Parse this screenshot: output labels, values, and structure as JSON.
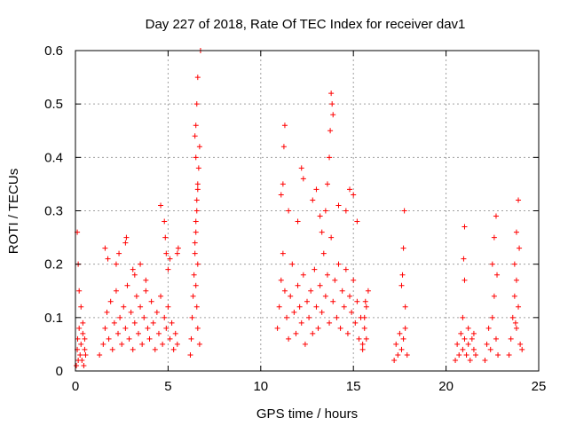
{
  "chart_data": {
    "type": "scatter",
    "title": "Day 227 of 2018, Rate Of TEC Index for receiver dav1",
    "xlabel": "GPS time / hours",
    "ylabel": "ROTI / TECUs",
    "xlim": [
      0,
      25
    ],
    "ylim": [
      0,
      0.6
    ],
    "xticks": [
      "0",
      "5",
      "10",
      "15",
      "20",
      "25"
    ],
    "yticks": [
      "0",
      "0.1",
      "0.2",
      "0.3",
      "0.4",
      "0.5",
      "0.6"
    ],
    "grid": true,
    "marker": "plus",
    "color": "#ff0000",
    "series": [
      {
        "x": [
          0.05,
          0.1,
          0.12,
          0.15,
          0.2,
          0.25,
          0.3,
          0.35,
          0.4,
          0.45,
          0.5,
          0.1,
          0.15,
          0.2,
          0.3,
          0.4,
          0.5,
          0.55,
          1.3,
          1.5,
          1.6,
          1.7,
          1.8,
          1.9,
          2.0,
          2.1,
          2.2,
          2.3,
          2.4,
          2.5,
          2.6,
          2.7,
          2.8,
          2.9,
          3.0,
          3.1,
          3.2,
          3.3,
          3.4,
          3.5,
          3.6,
          3.7,
          3.8,
          3.9,
          4.0,
          4.1,
          4.2,
          4.3,
          4.4,
          4.5,
          4.6,
          4.7,
          4.8,
          4.9,
          5.0,
          5.1,
          5.2,
          5.3,
          5.4,
          5.5,
          1.6,
          1.75,
          2.2,
          2.35,
          2.7,
          2.75,
          3.1,
          3.2,
          3.5,
          3.8,
          4.6,
          4.8,
          4.85,
          4.9,
          5.0,
          5.1,
          5.5,
          5.55,
          6.2,
          6.25,
          6.3,
          6.35,
          6.4,
          6.45,
          6.5,
          6.55,
          6.6,
          6.65,
          6.7,
          6.5,
          6.55,
          6.6,
          6.45,
          6.5,
          6.6,
          6.55,
          6.5,
          6.45,
          6.6,
          6.5,
          6.55,
          6.6,
          6.7,
          6.75,
          10.9,
          11.0,
          11.1,
          11.2,
          11.3,
          11.4,
          11.5,
          11.6,
          11.7,
          11.8,
          11.9,
          12.0,
          12.1,
          12.2,
          12.3,
          12.4,
          12.5,
          12.6,
          12.7,
          12.8,
          12.9,
          13.0,
          13.1,
          13.2,
          13.3,
          13.4,
          13.5,
          13.6,
          13.7,
          13.8,
          13.9,
          14.0,
          14.1,
          14.2,
          14.3,
          14.4,
          14.5,
          14.6,
          14.7,
          14.8,
          14.9,
          15.0,
          15.1,
          15.2,
          15.3,
          15.4,
          15.5,
          11.1,
          11.2,
          11.25,
          11.3,
          11.5,
          12.0,
          12.2,
          12.3,
          12.8,
          13.0,
          13.2,
          13.3,
          13.5,
          13.6,
          13.7,
          13.75,
          13.8,
          13.85,
          13.9,
          14.2,
          14.6,
          14.8,
          15.0,
          15.2,
          15.5,
          15.6,
          15.7,
          15.8,
          15.6,
          15.7,
          15.65,
          17.2,
          17.3,
          17.4,
          17.5,
          17.6,
          17.7,
          17.8,
          17.9,
          17.6,
          17.7,
          17.75,
          17.8,
          17.65,
          20.5,
          20.6,
          20.7,
          20.8,
          20.9,
          21.0,
          21.1,
          21.2,
          21.3,
          21.4,
          21.5,
          21.6,
          20.9,
          21.0,
          20.95,
          21.0,
          21.2,
          21.5,
          22.1,
          22.2,
          22.3,
          22.4,
          22.5,
          22.6,
          22.7,
          22.8,
          22.5,
          22.6,
          22.7,
          22.75,
          23.4,
          23.5,
          23.6,
          23.7,
          23.8,
          23.9,
          24.0,
          24.1,
          23.7,
          23.8,
          23.9,
          23.95,
          23.8,
          23.75
        ],
        "y": [
          0.01,
          0.04,
          0.06,
          0.02,
          0.08,
          0.03,
          0.05,
          0.02,
          0.07,
          0.01,
          0.04,
          0.26,
          0.2,
          0.15,
          0.12,
          0.09,
          0.06,
          0.03,
          0.03,
          0.05,
          0.08,
          0.11,
          0.06,
          0.13,
          0.04,
          0.09,
          0.15,
          0.07,
          0.1,
          0.05,
          0.12,
          0.08,
          0.16,
          0.06,
          0.11,
          0.04,
          0.09,
          0.14,
          0.07,
          0.12,
          0.05,
          0.1,
          0.15,
          0.08,
          0.06,
          0.13,
          0.09,
          0.04,
          0.11,
          0.07,
          0.14,
          0.05,
          0.1,
          0.08,
          0.12,
          0.06,
          0.09,
          0.04,
          0.07,
          0.05,
          0.23,
          0.21,
          0.2,
          0.22,
          0.24,
          0.25,
          0.19,
          0.18,
          0.2,
          0.17,
          0.31,
          0.28,
          0.25,
          0.22,
          0.19,
          0.21,
          0.22,
          0.23,
          0.03,
          0.06,
          0.1,
          0.14,
          0.18,
          0.22,
          0.26,
          0.3,
          0.34,
          0.38,
          0.42,
          0.46,
          0.5,
          0.55,
          0.44,
          0.4,
          0.35,
          0.32,
          0.28,
          0.24,
          0.2,
          0.16,
          0.12,
          0.08,
          0.05,
          0.6,
          0.08,
          0.12,
          0.17,
          0.22,
          0.15,
          0.1,
          0.06,
          0.14,
          0.2,
          0.11,
          0.07,
          0.16,
          0.12,
          0.09,
          0.18,
          0.05,
          0.13,
          0.1,
          0.15,
          0.07,
          0.19,
          0.12,
          0.08,
          0.16,
          0.11,
          0.22,
          0.14,
          0.18,
          0.09,
          0.25,
          0.13,
          0.17,
          0.1,
          0.2,
          0.08,
          0.15,
          0.12,
          0.19,
          0.07,
          0.14,
          0.11,
          0.17,
          0.09,
          0.13,
          0.06,
          0.1,
          0.05,
          0.33,
          0.35,
          0.42,
          0.46,
          0.3,
          0.28,
          0.38,
          0.36,
          0.32,
          0.34,
          0.29,
          0.26,
          0.3,
          0.35,
          0.4,
          0.45,
          0.52,
          0.5,
          0.48,
          0.31,
          0.3,
          0.34,
          0.33,
          0.28,
          0.04,
          0.08,
          0.12,
          0.15,
          0.1,
          0.06,
          0.13,
          0.02,
          0.05,
          0.03,
          0.07,
          0.04,
          0.06,
          0.08,
          0.03,
          0.16,
          0.23,
          0.3,
          0.12,
          0.18,
          0.02,
          0.05,
          0.03,
          0.07,
          0.04,
          0.06,
          0.03,
          0.05,
          0.02,
          0.06,
          0.04,
          0.03,
          0.1,
          0.27,
          0.21,
          0.17,
          0.08,
          0.07,
          0.02,
          0.05,
          0.08,
          0.04,
          0.1,
          0.14,
          0.06,
          0.03,
          0.2,
          0.25,
          0.29,
          0.18,
          0.03,
          0.06,
          0.1,
          0.14,
          0.08,
          0.12,
          0.05,
          0.04,
          0.2,
          0.26,
          0.32,
          0.23,
          0.17,
          0.09
        ]
      }
    ]
  }
}
